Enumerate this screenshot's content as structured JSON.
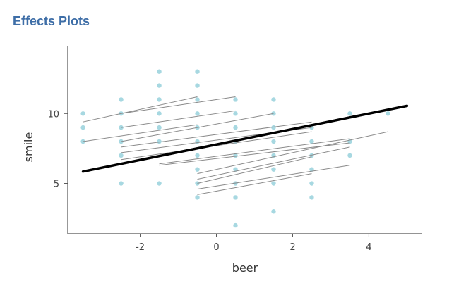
{
  "page": {
    "section_title": "Effects Plots"
  },
  "chart_data": {
    "type": "scatter",
    "xlabel": "beer",
    "ylabel": "smile",
    "xlim": [
      -3.9,
      5.4
    ],
    "ylim": [
      1.4,
      14.8
    ],
    "x_ticks": [
      -2,
      0,
      2,
      4
    ],
    "x_tick_labels": [
      "-2",
      "0",
      "2",
      "4"
    ],
    "y_ticks": [
      5,
      10
    ],
    "y_tick_labels": [
      "5",
      "10"
    ],
    "grid": false,
    "points": [
      {
        "x": -3.5,
        "y": 10
      },
      {
        "x": -3.5,
        "y": 9
      },
      {
        "x": -3.5,
        "y": 8
      },
      {
        "x": -2.5,
        "y": 11
      },
      {
        "x": -2.5,
        "y": 10
      },
      {
        "x": -2.5,
        "y": 9
      },
      {
        "x": -2.5,
        "y": 8
      },
      {
        "x": -2.5,
        "y": 7
      },
      {
        "x": -2.5,
        "y": 5
      },
      {
        "x": -1.5,
        "y": 13
      },
      {
        "x": -1.5,
        "y": 12
      },
      {
        "x": -1.5,
        "y": 11
      },
      {
        "x": -1.5,
        "y": 10
      },
      {
        "x": -1.5,
        "y": 9
      },
      {
        "x": -1.5,
        "y": 8
      },
      {
        "x": -1.5,
        "y": 5
      },
      {
        "x": -0.5,
        "y": 13
      },
      {
        "x": -0.5,
        "y": 12
      },
      {
        "x": -0.5,
        "y": 11
      },
      {
        "x": -0.5,
        "y": 10
      },
      {
        "x": -0.5,
        "y": 9
      },
      {
        "x": -0.5,
        "y": 8
      },
      {
        "x": -0.5,
        "y": 7
      },
      {
        "x": -0.5,
        "y": 6
      },
      {
        "x": -0.5,
        "y": 5
      },
      {
        "x": -0.5,
        "y": 4
      },
      {
        "x": 0.5,
        "y": 11
      },
      {
        "x": 0.5,
        "y": 10
      },
      {
        "x": 0.5,
        "y": 9
      },
      {
        "x": 0.5,
        "y": 8
      },
      {
        "x": 0.5,
        "y": 7
      },
      {
        "x": 0.5,
        "y": 6
      },
      {
        "x": 0.5,
        "y": 5
      },
      {
        "x": 0.5,
        "y": 4
      },
      {
        "x": 0.5,
        "y": 2
      },
      {
        "x": 1.5,
        "y": 11
      },
      {
        "x": 1.5,
        "y": 10
      },
      {
        "x": 1.5,
        "y": 9
      },
      {
        "x": 1.5,
        "y": 8
      },
      {
        "x": 1.5,
        "y": 7
      },
      {
        "x": 1.5,
        "y": 6
      },
      {
        "x": 1.5,
        "y": 5
      },
      {
        "x": 1.5,
        "y": 3
      },
      {
        "x": 2.5,
        "y": 9
      },
      {
        "x": 2.5,
        "y": 8
      },
      {
        "x": 2.5,
        "y": 7
      },
      {
        "x": 2.5,
        "y": 6
      },
      {
        "x": 2.5,
        "y": 5
      },
      {
        "x": 2.5,
        "y": 4
      },
      {
        "x": 3.5,
        "y": 10
      },
      {
        "x": 3.5,
        "y": 8
      },
      {
        "x": 3.5,
        "y": 7
      },
      {
        "x": 4.5,
        "y": 10
      }
    ],
    "group_lines": [
      {
        "x": [
          -3.5,
          -0.5
        ],
        "y": [
          9.4,
          11.2
        ]
      },
      {
        "x": [
          -2.5,
          0.5
        ],
        "y": [
          10.0,
          11.2
        ]
      },
      {
        "x": [
          -2.5,
          0.5
        ],
        "y": [
          9.0,
          10.2
        ]
      },
      {
        "x": [
          -3.5,
          -0.5
        ],
        "y": [
          8.0,
          9.2
        ]
      },
      {
        "x": [
          -2.5,
          1.5
        ],
        "y": [
          8.0,
          10.0
        ]
      },
      {
        "x": [
          -2.5,
          2.5
        ],
        "y": [
          7.6,
          9.4
        ]
      },
      {
        "x": [
          -2.5,
          2.5
        ],
        "y": [
          7.2,
          9.0
        ]
      },
      {
        "x": [
          -2.5,
          2.5
        ],
        "y": [
          6.7,
          8.7
        ]
      },
      {
        "x": [
          -1.5,
          3.5
        ],
        "y": [
          6.4,
          8.2
        ]
      },
      {
        "x": [
          -1.5,
          3.5
        ],
        "y": [
          6.3,
          7.9
        ]
      },
      {
        "x": [
          -0.5,
          4.5
        ],
        "y": [
          5.7,
          8.7
        ]
      },
      {
        "x": [
          -0.5,
          3.5
        ],
        "y": [
          5.3,
          7.6
        ]
      },
      {
        "x": [
          -0.5,
          2.5
        ],
        "y": [
          5.0,
          6.9
        ]
      },
      {
        "x": [
          -0.5,
          3.5
        ],
        "y": [
          4.6,
          6.3
        ]
      },
      {
        "x": [
          -0.5,
          2.5
        ],
        "y": [
          4.2,
          5.7
        ]
      }
    ],
    "overall_line": {
      "x": [
        -3.5,
        5.0
      ],
      "y": [
        5.85,
        10.55
      ]
    },
    "colors": {
      "point": "#5fb8c9",
      "group_line": "#8a8a8a",
      "overall_line": "#000000",
      "axis": "#555555",
      "title": "#3e6ea7"
    }
  }
}
